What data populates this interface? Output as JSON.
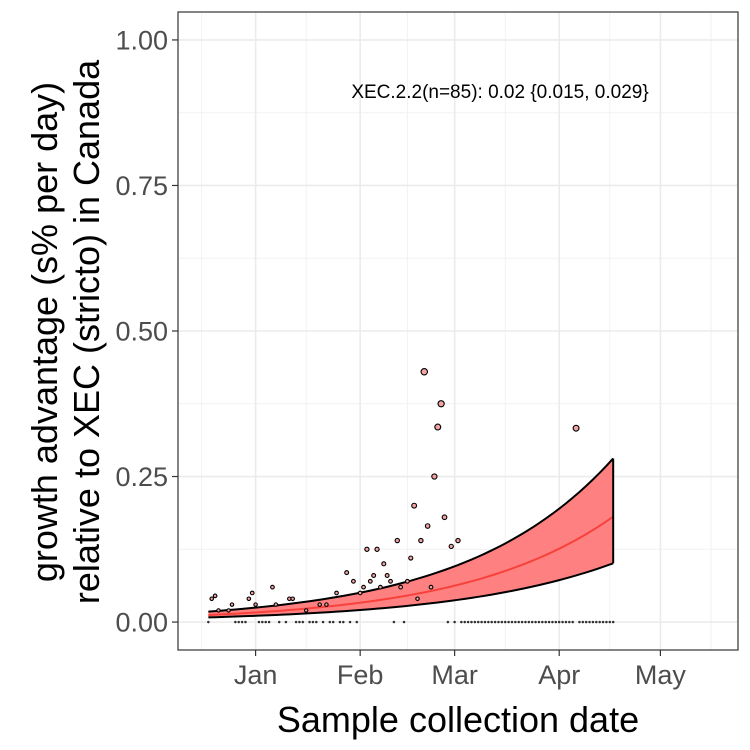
{
  "chart_data": {
    "type": "line",
    "ylabel_line1": "growth advantage (s% per day)",
    "ylabel_line2": "relative to XEC (stricto) in Canada",
    "xlabel": "Sample collection date",
    "annotation": "XEC.2.2(n=85): 0.02 {0.015, 0.029}",
    "x_axis": {
      "type": "date",
      "range": [
        "2024-12-09",
        "2025-05-24"
      ],
      "ticks": [
        {
          "label": "Jan",
          "date": "2025-01-01"
        },
        {
          "label": "Feb",
          "date": "2025-02-01"
        },
        {
          "label": "Mar",
          "date": "2025-03-01"
        },
        {
          "label": "Apr",
          "date": "2025-04-01"
        },
        {
          "label": "May",
          "date": "2025-05-01"
        }
      ],
      "minor_ticks": [
        "2024-12-16",
        "2025-01-16",
        "2025-02-15",
        "2025-03-16",
        "2025-04-16",
        "2025-05-16"
      ]
    },
    "y_axis": {
      "range": [
        -0.048,
        1.048
      ],
      "ticks": [
        0.0,
        0.25,
        0.5,
        0.75,
        1.0
      ],
      "tick_labels": [
        "0.00",
        "0.25",
        "0.50",
        "0.75",
        "1.00"
      ]
    },
    "grid": true,
    "colors": {
      "fit": "#f8413c",
      "ribbon": "#ff8080",
      "ci_border": "#000000",
      "point_fill": "#f4a3a3",
      "point_edge": "#000000"
    },
    "fit": {
      "start": "2024-12-18",
      "end": "2025-04-17",
      "start_values": {
        "y": 0.012,
        "lower": 0.008,
        "upper": 0.018
      },
      "end_values": {
        "y": 0.181,
        "lower": 0.101,
        "upper": 0.281
      }
    },
    "points": [
      {
        "date": "2024-12-18",
        "y": 0.0
      },
      {
        "date": "2024-12-19",
        "y": 0.04
      },
      {
        "date": "2024-12-20",
        "y": 0.045
      },
      {
        "date": "2024-12-21",
        "y": 0.02
      },
      {
        "date": "2024-12-24",
        "y": 0.02
      },
      {
        "date": "2024-12-25",
        "y": 0.03
      },
      {
        "date": "2024-12-26",
        "y": 0.0
      },
      {
        "date": "2024-12-27",
        "y": 0.0
      },
      {
        "date": "2024-12-28",
        "y": 0.0
      },
      {
        "date": "2024-12-29",
        "y": 0.0
      },
      {
        "date": "2024-12-30",
        "y": 0.04
      },
      {
        "date": "2024-12-31",
        "y": 0.05
      },
      {
        "date": "2025-01-01",
        "y": 0.03
      },
      {
        "date": "2025-01-02",
        "y": 0.0
      },
      {
        "date": "2025-01-03",
        "y": 0.0
      },
      {
        "date": "2025-01-04",
        "y": 0.0
      },
      {
        "date": "2025-01-05",
        "y": 0.0
      },
      {
        "date": "2025-01-06",
        "y": 0.06
      },
      {
        "date": "2025-01-07",
        "y": 0.03
      },
      {
        "date": "2025-01-08",
        "y": 0.0
      },
      {
        "date": "2025-01-10",
        "y": 0.0
      },
      {
        "date": "2025-01-11",
        "y": 0.04
      },
      {
        "date": "2025-01-12",
        "y": 0.04
      },
      {
        "date": "2025-01-13",
        "y": 0.0
      },
      {
        "date": "2025-01-14",
        "y": 0.0
      },
      {
        "date": "2025-01-15",
        "y": 0.0
      },
      {
        "date": "2025-01-16",
        "y": 0.02
      },
      {
        "date": "2025-01-17",
        "y": 0.0
      },
      {
        "date": "2025-01-18",
        "y": 0.0
      },
      {
        "date": "2025-01-19",
        "y": 0.0
      },
      {
        "date": "2025-01-20",
        "y": 0.03
      },
      {
        "date": "2025-01-21",
        "y": 0.0
      },
      {
        "date": "2025-01-22",
        "y": 0.03
      },
      {
        "date": "2025-01-23",
        "y": 0.0
      },
      {
        "date": "2025-01-24",
        "y": 0.0
      },
      {
        "date": "2025-01-25",
        "y": 0.05
      },
      {
        "date": "2025-01-26",
        "y": 0.0
      },
      {
        "date": "2025-01-27",
        "y": 0.0
      },
      {
        "date": "2025-01-28",
        "y": 0.085
      },
      {
        "date": "2025-01-29",
        "y": 0.0
      },
      {
        "date": "2025-01-30",
        "y": 0.07
      },
      {
        "date": "2025-01-31",
        "y": 0.0
      },
      {
        "date": "2025-02-01",
        "y": 0.05
      },
      {
        "date": "2025-02-02",
        "y": 0.06
      },
      {
        "date": "2025-02-03",
        "y": 0.125
      },
      {
        "date": "2025-02-04",
        "y": 0.07
      },
      {
        "date": "2025-02-05",
        "y": 0.08
      },
      {
        "date": "2025-02-06",
        "y": 0.125
      },
      {
        "date": "2025-02-07",
        "y": 0.06
      },
      {
        "date": "2025-02-08",
        "y": 0.1
      },
      {
        "date": "2025-02-09",
        "y": 0.08
      },
      {
        "date": "2025-02-10",
        "y": 0.07
      },
      {
        "date": "2025-02-11",
        "y": 0.0
      },
      {
        "date": "2025-02-12",
        "y": 0.14
      },
      {
        "date": "2025-02-13",
        "y": 0.06
      },
      {
        "date": "2025-02-14",
        "y": 0.0
      },
      {
        "date": "2025-02-15",
        "y": 0.07
      },
      {
        "date": "2025-02-16",
        "y": 0.11
      },
      {
        "date": "2025-02-17",
        "y": 0.2
      },
      {
        "date": "2025-02-18",
        "y": 0.04
      },
      {
        "date": "2025-02-19",
        "y": 0.14
      },
      {
        "date": "2025-02-20",
        "y": 0.43
      },
      {
        "date": "2025-02-21",
        "y": 0.165
      },
      {
        "date": "2025-02-22",
        "y": 0.06
      },
      {
        "date": "2025-02-23",
        "y": 0.25
      },
      {
        "date": "2025-02-24",
        "y": 0.335
      },
      {
        "date": "2025-02-25",
        "y": 0.375
      },
      {
        "date": "2025-02-26",
        "y": 0.18
      },
      {
        "date": "2025-02-27",
        "y": 0.0
      },
      {
        "date": "2025-02-28",
        "y": 0.13
      },
      {
        "date": "2025-03-01",
        "y": 0.0
      },
      {
        "date": "2025-03-02",
        "y": 0.14
      },
      {
        "date": "2025-03-03",
        "y": 0.0
      },
      {
        "date": "2025-03-04",
        "y": 0.0
      },
      {
        "date": "2025-03-05",
        "y": 0.0
      },
      {
        "date": "2025-03-06",
        "y": 0.0
      },
      {
        "date": "2025-03-07",
        "y": 0.0
      },
      {
        "date": "2025-03-08",
        "y": 0.0
      },
      {
        "date": "2025-03-09",
        "y": 0.0
      },
      {
        "date": "2025-03-10",
        "y": 0.0
      },
      {
        "date": "2025-03-11",
        "y": 0.0
      },
      {
        "date": "2025-03-12",
        "y": 0.0
      },
      {
        "date": "2025-03-13",
        "y": 0.0
      },
      {
        "date": "2025-03-14",
        "y": 0.0
      },
      {
        "date": "2025-03-15",
        "y": 0.0
      },
      {
        "date": "2025-03-16",
        "y": 0.0
      },
      {
        "date": "2025-03-17",
        "y": 0.0
      },
      {
        "date": "2025-03-18",
        "y": 0.0
      },
      {
        "date": "2025-03-19",
        "y": 0.0
      },
      {
        "date": "2025-03-20",
        "y": 0.0
      },
      {
        "date": "2025-03-21",
        "y": 0.0
      },
      {
        "date": "2025-03-22",
        "y": 0.0
      },
      {
        "date": "2025-03-23",
        "y": 0.0
      },
      {
        "date": "2025-03-24",
        "y": 0.0
      },
      {
        "date": "2025-03-25",
        "y": 0.0
      },
      {
        "date": "2025-03-26",
        "y": 0.0
      },
      {
        "date": "2025-03-27",
        "y": 0.0
      },
      {
        "date": "2025-03-28",
        "y": 0.0
      },
      {
        "date": "2025-03-29",
        "y": 0.0
      },
      {
        "date": "2025-03-30",
        "y": 0.0
      },
      {
        "date": "2025-03-31",
        "y": 0.0
      },
      {
        "date": "2025-04-01",
        "y": 0.0
      },
      {
        "date": "2025-04-02",
        "y": 0.0
      },
      {
        "date": "2025-04-03",
        "y": 0.0
      },
      {
        "date": "2025-04-04",
        "y": 0.0
      },
      {
        "date": "2025-04-05",
        "y": 0.0
      },
      {
        "date": "2025-04-06",
        "y": 0.333
      },
      {
        "date": "2025-04-07",
        "y": 0.0
      },
      {
        "date": "2025-04-08",
        "y": 0.0
      },
      {
        "date": "2025-04-09",
        "y": 0.0
      },
      {
        "date": "2025-04-10",
        "y": 0.0
      },
      {
        "date": "2025-04-11",
        "y": 0.0
      },
      {
        "date": "2025-04-12",
        "y": 0.0
      },
      {
        "date": "2025-04-13",
        "y": 0.0
      },
      {
        "date": "2025-04-14",
        "y": 0.0
      },
      {
        "date": "2025-04-15",
        "y": 0.0
      },
      {
        "date": "2025-04-16",
        "y": 0.0
      },
      {
        "date": "2025-04-17",
        "y": 0.0
      }
    ]
  }
}
